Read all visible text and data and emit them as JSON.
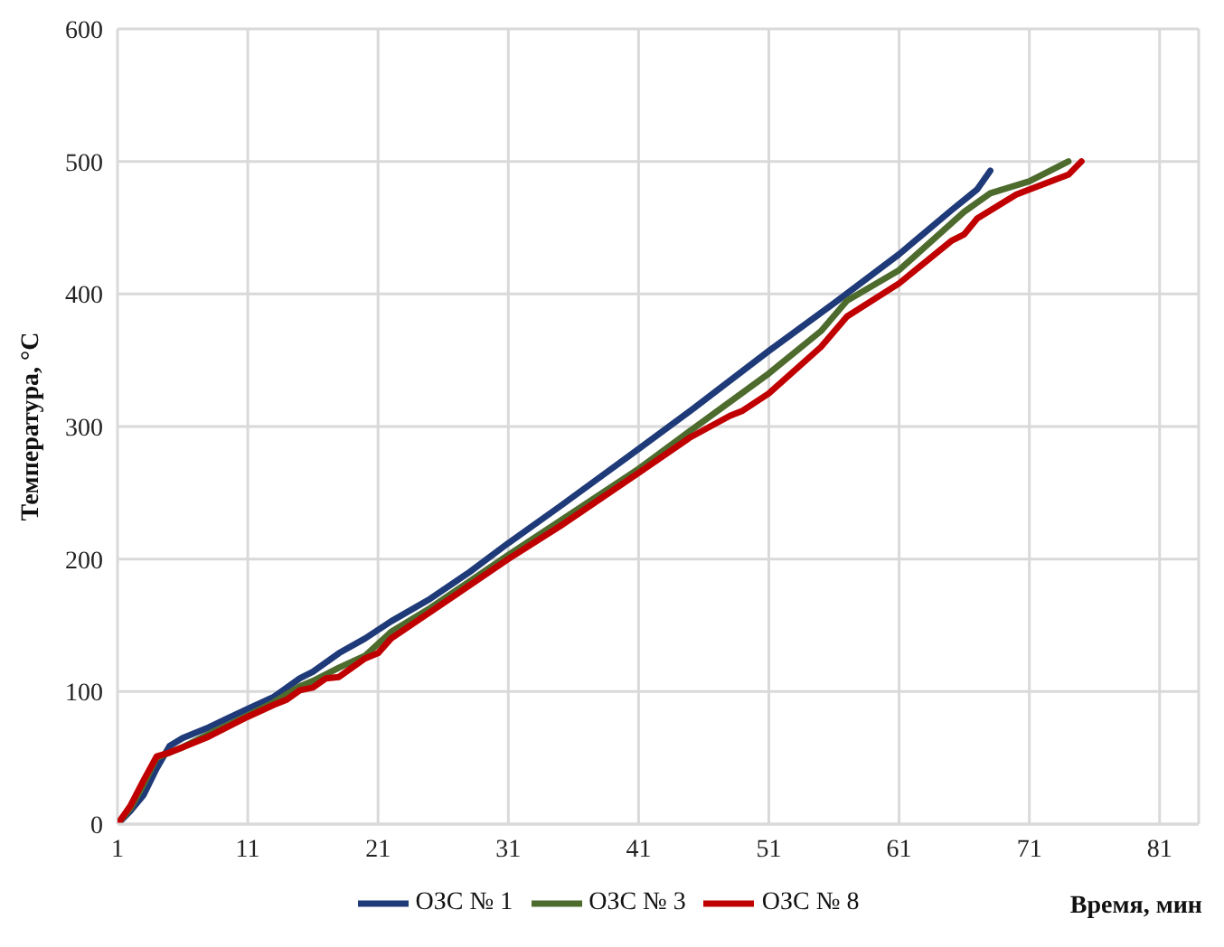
{
  "chart_data": {
    "type": "line",
    "xlabel": "Время, мин",
    "ylabel": "Температура, °С",
    "xlim": [
      1,
      84
    ],
    "xticks": [
      1,
      11,
      21,
      31,
      41,
      51,
      61,
      71,
      81
    ],
    "ylim": [
      0,
      600
    ],
    "yticks": [
      0,
      100,
      200,
      300,
      400,
      500,
      600
    ],
    "grid": true,
    "legend": "bottom",
    "marker": "none",
    "line_style": "solid",
    "series": [
      {
        "name": "ОЗС № 1",
        "color": "#1f3a78",
        "x": [
          1,
          2,
          3,
          4,
          5,
          6,
          8,
          11,
          13,
          15,
          16,
          18,
          20,
          22,
          25,
          28,
          31,
          35,
          41,
          45,
          51,
          56,
          61,
          65,
          66,
          67,
          68
        ],
        "values": [
          0,
          10,
          22,
          42,
          59,
          65,
          73,
          87,
          96,
          110,
          115,
          129,
          140,
          153,
          170,
          190,
          212,
          240,
          283,
          312,
          357,
          393,
          430,
          463,
          471,
          479,
          493
        ]
      },
      {
        "name": "ОЗС № 3",
        "color": "#4e6b2e",
        "x": [
          1,
          2,
          3,
          4,
          5,
          6,
          8,
          11,
          13,
          15,
          16,
          18,
          20,
          22,
          25,
          28,
          31,
          35,
          41,
          45,
          51,
          55,
          57,
          61,
          66,
          68,
          71,
          74
        ],
        "values": [
          0,
          12,
          30,
          50,
          54,
          58,
          68,
          82,
          92,
          104,
          108,
          118,
          127,
          145,
          163,
          183,
          203,
          229,
          268,
          297,
          340,
          372,
          395,
          418,
          462,
          476,
          485,
          500
        ]
      },
      {
        "name": "ОЗС № 8",
        "color": "#c00000",
        "x": [
          1,
          2,
          3,
          4,
          5,
          6,
          8,
          11,
          13,
          14,
          15,
          16,
          17,
          18,
          20,
          21,
          22,
          25,
          28,
          31,
          35,
          41,
          45,
          48,
          49,
          51,
          55,
          57,
          61,
          65,
          66,
          67,
          70,
          74,
          75
        ],
        "values": [
          0,
          14,
          33,
          51,
          54,
          58,
          66,
          81,
          90,
          94,
          101,
          103,
          110,
          111,
          125,
          129,
          140,
          160,
          180,
          200,
          225,
          265,
          292,
          308,
          312,
          325,
          360,
          383,
          408,
          440,
          445,
          457,
          475,
          490,
          500
        ]
      }
    ]
  }
}
